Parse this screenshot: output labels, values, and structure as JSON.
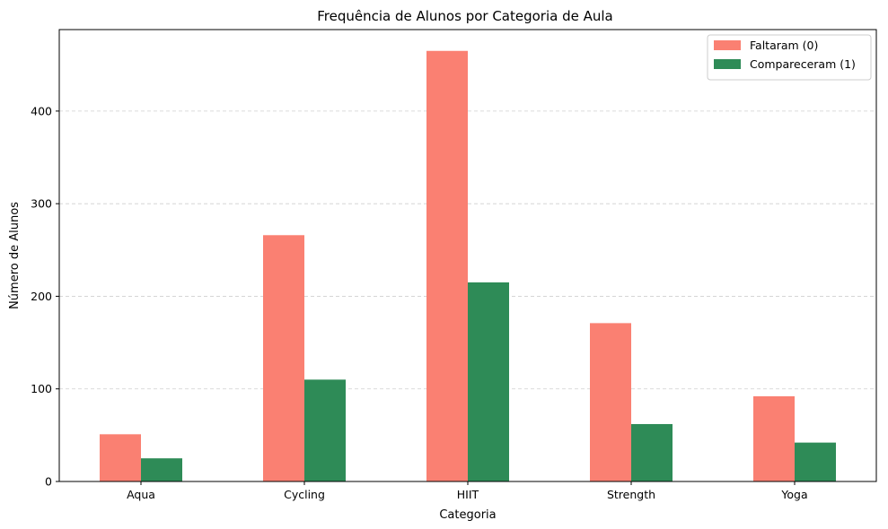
{
  "chart_data": {
    "type": "bar",
    "title": "Frequência de Alunos por Categoria de Aula",
    "xlabel": "Categoria",
    "ylabel": "Número de Alunos",
    "categories": [
      "Aqua",
      "Cycling",
      "HIIT",
      "Strength",
      "Yoga"
    ],
    "series": [
      {
        "name": "Faltaram (0)",
        "color": "#fa8072",
        "values": [
          51,
          266,
          465,
          171,
          92
        ]
      },
      {
        "name": "Compareceram (1)",
        "color": "#2e8b57",
        "values": [
          25,
          110,
          215,
          62,
          42
        ]
      }
    ],
    "ylim": [
      0,
      488
    ],
    "yticks": [
      0,
      100,
      200,
      300,
      400
    ],
    "grid": "y-dashed",
    "legend": "top-right"
  }
}
